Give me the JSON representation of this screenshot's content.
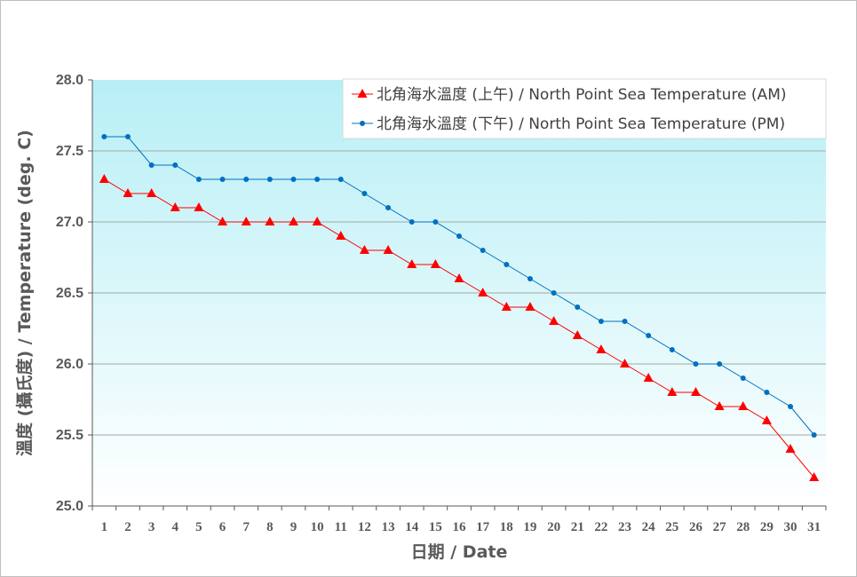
{
  "chart_data": {
    "type": "line",
    "title": "",
    "xlabel": "日期 / Date",
    "ylabel": "溫度 (攝氏度) / Temperature (deg. C)",
    "ylim": [
      25.0,
      28.0
    ],
    "yticks": [
      "25.0",
      "25.5",
      "26.0",
      "26.5",
      "27.0",
      "27.5",
      "28.0"
    ],
    "x": [
      1,
      2,
      3,
      4,
      5,
      6,
      7,
      8,
      9,
      10,
      11,
      12,
      13,
      14,
      15,
      16,
      17,
      18,
      19,
      20,
      21,
      22,
      23,
      24,
      25,
      26,
      27,
      28,
      29,
      30,
      31
    ],
    "grid": true,
    "legend_position": "top-right",
    "series": [
      {
        "name": "北角海水溫度 (上午) / North Point Sea Temperature (AM)",
        "color": "#ff0000",
        "marker": "triangle",
        "values": [
          27.3,
          27.2,
          27.2,
          27.1,
          27.1,
          27.0,
          27.0,
          27.0,
          27.0,
          27.0,
          26.9,
          26.8,
          26.8,
          26.7,
          26.7,
          26.6,
          26.5,
          26.4,
          26.4,
          26.3,
          26.2,
          26.1,
          26.0,
          25.9,
          25.8,
          25.8,
          25.7,
          25.7,
          25.6,
          25.4,
          25.2
        ]
      },
      {
        "name": "北角海水溫度 (下午) / North Point Sea Temperature (PM)",
        "color": "#0070c0",
        "marker": "circle",
        "values": [
          27.6,
          27.6,
          27.4,
          27.4,
          27.3,
          27.3,
          27.3,
          27.3,
          27.3,
          27.3,
          27.3,
          27.2,
          27.1,
          27.0,
          27.0,
          26.9,
          26.8,
          26.7,
          26.6,
          26.5,
          26.4,
          26.3,
          26.3,
          26.2,
          26.1,
          26.0,
          26.0,
          25.9,
          25.8,
          25.7,
          25.5
        ]
      }
    ]
  }
}
